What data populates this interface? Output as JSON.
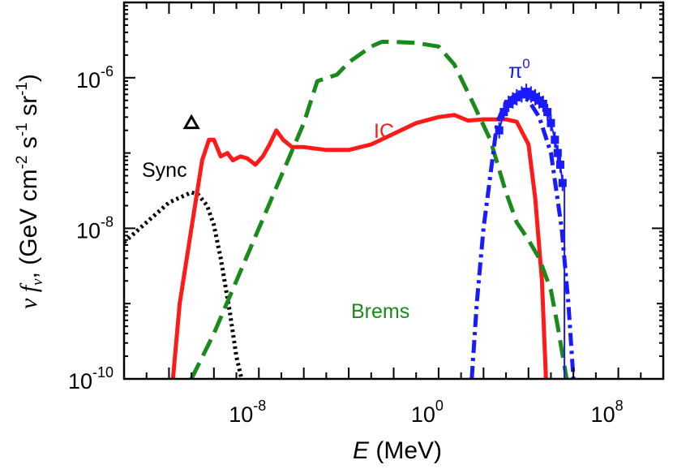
{
  "chart_data": {
    "type": "line",
    "xlabel": "E",
    "xlabel_unit": "(MeV)",
    "ylabel_symbol": "ν f",
    "ylabel_sub": "ν",
    "ylabel_comma": ",",
    "ylabel_unit_pre": "(GeV cm",
    "ylabel_unit_mid1": "s",
    "ylabel_unit_mid2": "sr",
    "ylabel_unit_post": ")",
    "ylabel_exp_cm": "-2",
    "ylabel_exp_s": "-1",
    "ylabel_exp_sr": "-1",
    "x_scale": "log",
    "y_scale": "log",
    "xlim": [
      1e-14,
      10000000000.0
    ],
    "ylim": [
      1e-10,
      1e-05
    ],
    "x_ticks": [
      {
        "value": 1e-08,
        "base": "10",
        "exp": "-8"
      },
      {
        "value": 1,
        "base": "10",
        "exp": "0"
      },
      {
        "value": 100000000.0,
        "base": "10",
        "exp": "8"
      }
    ],
    "y_ticks": [
      {
        "value": 1e-10,
        "base": "10",
        "exp": "-10"
      },
      {
        "value": 1e-08,
        "base": "10",
        "exp": "-8"
      },
      {
        "value": 1e-06,
        "base": "10",
        "exp": "-6"
      }
    ],
    "series": [
      {
        "name": "Sync",
        "color": "#000000",
        "style": "dotted",
        "points": [
          [
            1e-14,
            6.5e-09
          ],
          [
            1e-13,
            1.2e-08
          ],
          [
            1e-12,
            2.2e-08
          ],
          [
            1e-11,
            3e-08
          ],
          [
            2e-11,
            2.8e-08
          ],
          [
            5e-11,
            2e-08
          ],
          [
            1e-10,
            1.1e-08
          ],
          [
            2e-10,
            4e-09
          ],
          [
            5e-10,
            8e-10
          ],
          [
            1e-09,
            2e-10
          ],
          [
            1.7e-09,
            1e-10
          ]
        ]
      },
      {
        "name": "IC",
        "color": "#ff1a1a",
        "style": "solid",
        "points": [
          [
            1.5e-12,
            1e-10
          ],
          [
            3e-12,
            1e-09
          ],
          [
            1e-11,
            1e-08
          ],
          [
            3e-11,
            8e-08
          ],
          [
            6e-11,
            1.5e-07
          ],
          [
            1e-10,
            1.5e-07
          ],
          [
            2e-10,
            9e-08
          ],
          [
            4e-10,
            1e-07
          ],
          [
            7e-10,
            8e-08
          ],
          [
            1.5e-09,
            9e-08
          ],
          [
            3e-09,
            8.5e-08
          ],
          [
            7e-09,
            7e-08
          ],
          [
            1.5e-08,
            9e-08
          ],
          [
            3e-08,
            1.3e-07
          ],
          [
            6e-08,
            2e-07
          ],
          [
            1.2e-07,
            1.5e-07
          ],
          [
            3e-07,
            1.2e-07
          ],
          [
            1e-06,
            1.2e-07
          ],
          [
            1e-05,
            1.1e-07
          ],
          [
            0.0001,
            1.1e-07
          ],
          [
            0.001,
            1.3e-07
          ],
          [
            0.01,
            1.8e-07
          ],
          [
            0.1,
            2.5e-07
          ],
          [
            1,
            3e-07
          ],
          [
            5,
            3.2e-07
          ],
          [
            20,
            2.7e-07
          ],
          [
            100,
            2.8e-07
          ],
          [
            1000,
            2.8e-07
          ],
          [
            3000,
            2.6e-07
          ],
          [
            10000,
            1.3e-07
          ],
          [
            20000,
            2.5e-08
          ],
          [
            40000,
            2e-09
          ],
          [
            60000,
            1e-10
          ]
        ]
      },
      {
        "name": "Brems",
        "color": "#1a8a1a",
        "style": "dashed",
        "points": [
          [
            1e-11,
            1e-10
          ],
          [
            1e-10,
            4e-10
          ],
          [
            1e-09,
            2e-09
          ],
          [
            1e-08,
            1e-08
          ],
          [
            1e-07,
            5e-08
          ],
          [
            1e-06,
            2.5e-07
          ],
          [
            4e-06,
            9e-07
          ],
          [
            3e-05,
            1.1e-06
          ],
          [
            0.0001,
            1.6e-06
          ],
          [
            0.001,
            2.6e-06
          ],
          [
            0.003,
            3e-06
          ],
          [
            0.01,
            3e-06
          ],
          [
            0.1,
            2.9e-06
          ],
          [
            1,
            2.6e-06
          ],
          [
            5,
            1.5e-06
          ],
          [
            30,
            5e-07
          ],
          [
            200,
            1.5e-07
          ],
          [
            1000,
            3e-08
          ],
          [
            3000,
            1.2e-08
          ],
          [
            10000.0,
            7e-09
          ],
          [
            30000.0,
            4e-09
          ],
          [
            100000.0,
            1.5e-09
          ],
          [
            200000.0,
            5e-10
          ],
          [
            500000.0,
            1e-10
          ]
        ]
      },
      {
        "name": "π⁰",
        "label_base": "π",
        "label_sup": "0",
        "color": "#1a1aff",
        "style": "dashdot",
        "points": [
          [
            30,
            1e-10
          ],
          [
            50,
            1e-09
          ],
          [
            100,
            1e-08
          ],
          [
            200,
            5e-08
          ],
          [
            400,
            2.5e-07
          ],
          [
            1000,
            4.8e-07
          ],
          [
            3000,
            6e-07
          ],
          [
            10000,
            5e-07
          ],
          [
            30000,
            3e-07
          ],
          [
            100000.0,
            1e-07
          ],
          [
            300000.0,
            1e-08
          ],
          [
            600000.0,
            1e-09
          ],
          [
            1000000.0,
            1e-10
          ]
        ]
      }
    ],
    "observations": {
      "name": "data",
      "color": "#1a1aff",
      "points": [
        [
          500,
          2e-07
        ],
        [
          800,
          3.5e-07
        ],
        [
          1300,
          4.5e-07
        ],
        [
          2000,
          5e-07
        ],
        [
          3000,
          5.5e-07
        ],
        [
          5000,
          6e-07
        ],
        [
          8000,
          6.5e-07
        ],
        [
          13000,
          6e-07
        ],
        [
          20000,
          5.5e-07
        ],
        [
          30000,
          5e-07
        ],
        [
          45000,
          4.5e-07
        ],
        [
          70000,
          3.5e-07
        ],
        [
          100000,
          2.5e-07
        ],
        [
          150000,
          1.5e-07
        ],
        [
          200000,
          1e-07
        ],
        [
          260000,
          7e-08
        ],
        [
          330000,
          4e-08
        ]
      ],
      "upper_limit_drop": [
        400000,
        1e-10
      ]
    },
    "triangle_point": {
      "x": 1e-11,
      "y": 2.5e-07
    },
    "labels": {
      "sync": "Sync",
      "ic": "IC",
      "brems": "Brems"
    }
  }
}
